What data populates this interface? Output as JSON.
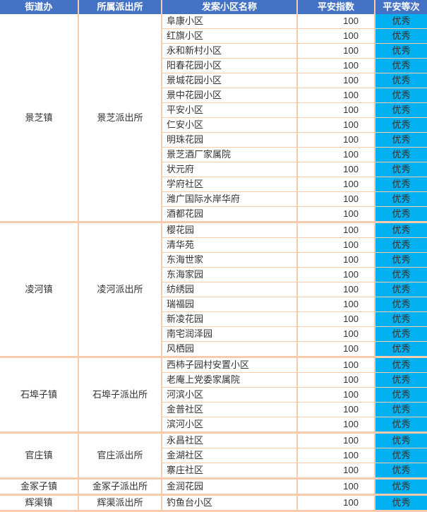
{
  "columns": [
    "街道办",
    "所属派出所",
    "发案小区名称",
    "平安指数",
    "平安等次"
  ],
  "colors": {
    "header_bg": "#4472c4",
    "header_fg": "#ffffff",
    "row_border": "#f8cbad",
    "grade_bg": "#00b0f0",
    "bg": "#ffffff"
  },
  "groups": [
    {
      "town": "景芝镇",
      "station": "景芝派出所",
      "rows": [
        {
          "community": "阜康小区",
          "index": 100,
          "grade": "优秀"
        },
        {
          "community": "红旗小区",
          "index": 100,
          "grade": "优秀"
        },
        {
          "community": "永和新村小区",
          "index": 100,
          "grade": "优秀"
        },
        {
          "community": "阳春花园小区",
          "index": 100,
          "grade": "优秀"
        },
        {
          "community": "景城花园小区",
          "index": 100,
          "grade": "优秀"
        },
        {
          "community": "景中花园小区",
          "index": 100,
          "grade": "优秀"
        },
        {
          "community": "平安小区",
          "index": 100,
          "grade": "优秀"
        },
        {
          "community": "仁安小区",
          "index": 100,
          "grade": "优秀"
        },
        {
          "community": "明珠花园",
          "index": 100,
          "grade": "优秀"
        },
        {
          "community": "景芝酒厂家属院",
          "index": 100,
          "grade": "优秀"
        },
        {
          "community": "状元府",
          "index": 100,
          "grade": "优秀"
        },
        {
          "community": "学府社区",
          "index": 100,
          "grade": "优秀"
        },
        {
          "community": "潍广国际水岸华府",
          "index": 100,
          "grade": "优秀"
        },
        {
          "community": "酒都花园",
          "index": 100,
          "grade": "优秀"
        }
      ]
    },
    {
      "town": "凌河镇",
      "station": "凌河派出所",
      "rows": [
        {
          "community": "樱花园",
          "index": 100,
          "grade": "优秀"
        },
        {
          "community": "清华苑",
          "index": 100,
          "grade": "优秀"
        },
        {
          "community": "东海世家",
          "index": 100,
          "grade": "优秀"
        },
        {
          "community": "东海家园",
          "index": 100,
          "grade": "优秀"
        },
        {
          "community": "纺绣园",
          "index": 100,
          "grade": "优秀"
        },
        {
          "community": "瑞福园",
          "index": 100,
          "grade": "优秀"
        },
        {
          "community": "新凌花园",
          "index": 100,
          "grade": "优秀"
        },
        {
          "community": "南宅润泽园",
          "index": 100,
          "grade": "优秀"
        },
        {
          "community": "风栖园",
          "index": 100,
          "grade": "优秀"
        }
      ]
    },
    {
      "town": "石埠子镇",
      "station": "石埠子派出所",
      "rows": [
        {
          "community": "西柿子园村安置小区",
          "index": 100,
          "grade": "优秀"
        },
        {
          "community": "老庵上党委家属院",
          "index": 100,
          "grade": "优秀"
        },
        {
          "community": "河滨小区",
          "index": 100,
          "grade": "优秀"
        },
        {
          "community": "金普社区",
          "index": 100,
          "grade": "优秀"
        },
        {
          "community": "滨河小区",
          "index": 100,
          "grade": "优秀"
        }
      ]
    },
    {
      "town": "官庄镇",
      "station": "官庄派出所",
      "rows": [
        {
          "community": "永昌社区",
          "index": 100,
          "grade": "优秀"
        },
        {
          "community": "金湖社区",
          "index": 100,
          "grade": "优秀"
        },
        {
          "community": "寨庄社区",
          "index": 100,
          "grade": "优秀"
        }
      ]
    },
    {
      "town": "金冢子镇",
      "station": "金冢子派出所",
      "rows": [
        {
          "community": "金润花园",
          "index": 100,
          "grade": "优秀"
        }
      ]
    },
    {
      "town": "辉渠镇",
      "station": "辉渠派出所",
      "rows": [
        {
          "community": "钓鱼台小区",
          "index": 100,
          "grade": "优秀"
        }
      ]
    }
  ]
}
